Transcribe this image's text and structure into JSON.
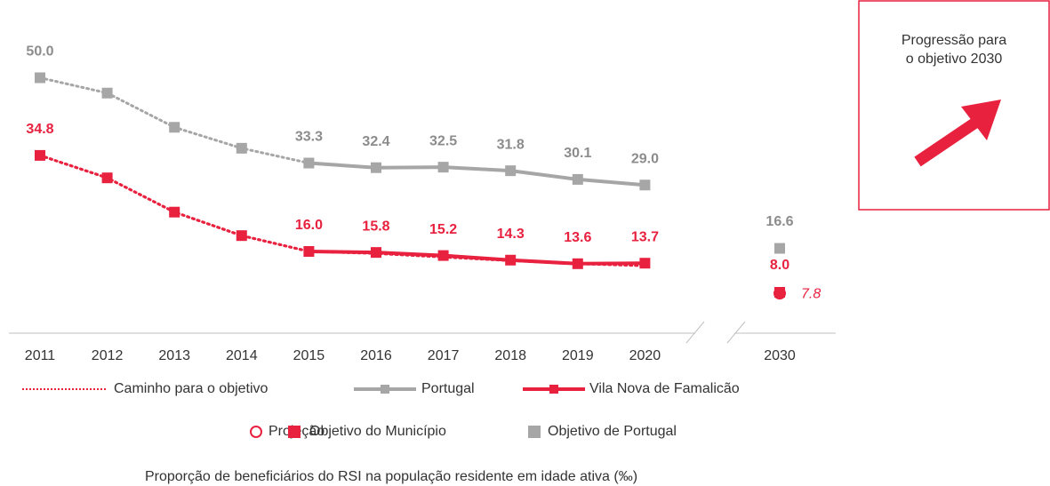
{
  "chart_data": {
    "type": "line",
    "categories": [
      "2011",
      "2012",
      "2013",
      "2014",
      "2015",
      "2016",
      "2017",
      "2018",
      "2019",
      "2020",
      "2030"
    ],
    "ylim": [
      0,
      52
    ],
    "series": [
      {
        "name": "Caminho para o objetivo",
        "color": "#e8213f",
        "line": "dotted",
        "values": [
          34.8,
          30.4,
          23.7,
          19.1,
          16.0,
          15.6,
          14.9,
          14.2,
          13.6,
          13.2,
          null
        ]
      },
      {
        "name": "Portugal",
        "color": "#a6a6a6",
        "line": "solid",
        "marker": "square",
        "dotted_until": "2015",
        "label_color": "#8c8c8c",
        "values": [
          50.0,
          47.0,
          40.3,
          36.2,
          33.3,
          32.4,
          32.5,
          31.8,
          30.1,
          29.0,
          null
        ],
        "value_labels": [
          "50.0",
          null,
          null,
          null,
          "33.3",
          "32.4",
          "32.5",
          "31.8",
          "30.1",
          "29.0",
          null
        ]
      },
      {
        "name": "Vila Nova de Famalicão",
        "color": "#e8213f",
        "line": "solid",
        "marker": "square",
        "dotted_until": "2015",
        "label_color": "#e8213f",
        "values": [
          34.8,
          30.4,
          23.7,
          19.1,
          16.0,
          15.8,
          15.2,
          14.3,
          13.6,
          13.7,
          null
        ],
        "value_labels": [
          "34.8",
          null,
          null,
          null,
          "16.0",
          "15.8",
          "15.2",
          "14.3",
          "13.6",
          "13.7",
          null
        ]
      }
    ],
    "points": [
      {
        "name": "Projeção",
        "color": "#e8213f",
        "marker": "circle",
        "values": [
          null,
          null,
          null,
          null,
          null,
          null,
          null,
          null,
          null,
          null,
          7.8
        ],
        "value_labels": [
          null,
          null,
          null,
          null,
          null,
          null,
          null,
          null,
          null,
          null,
          "7.8"
        ]
      },
      {
        "name": "Objetivo do Município",
        "color": "#e8213f",
        "marker": "square",
        "values": [
          null,
          null,
          null,
          null,
          null,
          null,
          null,
          null,
          null,
          null,
          8.0
        ],
        "value_labels": [
          null,
          null,
          null,
          null,
          null,
          null,
          null,
          null,
          null,
          null,
          "8.0"
        ]
      },
      {
        "name": "Objetivo de Portugal",
        "color": "#a6a6a6",
        "marker": "square",
        "label_color": "#8c8c8c",
        "values": [
          null,
          null,
          null,
          null,
          null,
          null,
          null,
          null,
          null,
          null,
          16.6
        ],
        "value_labels": [
          null,
          null,
          null,
          null,
          null,
          null,
          null,
          null,
          null,
          null,
          "16.6"
        ]
      }
    ],
    "x_axis_label": "Proporção de beneficiários do RSI na população residente em idade ativa (‰)",
    "box": {
      "lines": [
        "Progressão para",
        "o objetivo 2030"
      ]
    }
  }
}
